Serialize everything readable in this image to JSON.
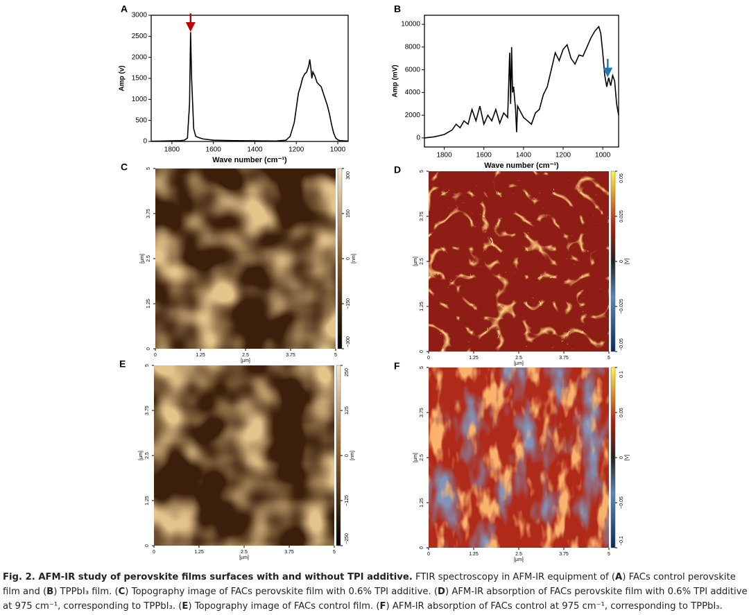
{
  "chart_data": [
    {
      "type": "line",
      "label": "A",
      "xlabel": "Wave number (cm⁻¹)",
      "ylabel": "Amp (v)",
      "x": [
        1900,
        1850,
        1800,
        1760,
        1740,
        1725,
        1715,
        1710,
        1705,
        1695,
        1685,
        1670,
        1650,
        1600,
        1500,
        1400,
        1300,
        1250,
        1230,
        1210,
        1200,
        1190,
        1180,
        1170,
        1160,
        1150,
        1140,
        1135,
        1130,
        1125,
        1120,
        1110,
        1100,
        1090,
        1080,
        1070,
        1060,
        1050,
        1040,
        1030,
        1020,
        1010,
        1000,
        990,
        950
      ],
      "series": [
        {
          "color": "#000000",
          "values": [
            5,
            10,
            15,
            20,
            30,
            80,
            900,
            2600,
            1500,
            300,
            120,
            90,
            60,
            30,
            20,
            15,
            10,
            30,
            120,
            450,
            800,
            1150,
            1300,
            1500,
            1600,
            1650,
            1800,
            1950,
            1750,
            1500,
            1650,
            1550,
            1400,
            1350,
            1300,
            1150,
            1000,
            850,
            650,
            400,
            200,
            80,
            40,
            20,
            10
          ]
        }
      ],
      "xlim": [
        1900,
        950
      ],
      "ylim": [
        0,
        3000
      ],
      "xticks": [
        1800,
        1600,
        1400,
        1200,
        1000
      ],
      "yticks": [
        0,
        500,
        1000,
        1500,
        2000,
        2500,
        3000
      ],
      "arrows": [
        {
          "x": 1710,
          "y": 2650,
          "color": "#c00000"
        }
      ]
    },
    {
      "type": "line",
      "label": "B",
      "xlabel": "Wave number (cm⁻¹)",
      "ylabel": "Amp (mV)",
      "x": [
        1900,
        1850,
        1800,
        1760,
        1740,
        1720,
        1700,
        1680,
        1660,
        1640,
        1620,
        1600,
        1580,
        1560,
        1540,
        1520,
        1500,
        1480,
        1470,
        1465,
        1460,
        1455,
        1450,
        1440,
        1435,
        1430,
        1400,
        1380,
        1360,
        1340,
        1320,
        1300,
        1280,
        1260,
        1240,
        1220,
        1200,
        1180,
        1160,
        1140,
        1120,
        1100,
        1080,
        1060,
        1040,
        1020,
        1010,
        1000,
        990,
        980,
        970,
        960,
        950,
        940,
        930,
        920
      ],
      "series": [
        {
          "color": "#000000",
          "values": [
            0,
            100,
            300,
            700,
            1200,
            900,
            1500,
            1200,
            2500,
            1500,
            2800,
            1200,
            2000,
            1500,
            2500,
            1300,
            2200,
            1800,
            7500,
            3000,
            8000,
            4000,
            4500,
            2500,
            500,
            2800,
            1800,
            1500,
            1200,
            2200,
            2500,
            3800,
            4500,
            6000,
            7500,
            6800,
            7800,
            8200,
            7000,
            6500,
            7300,
            7200,
            8000,
            8800,
            9400,
            9800,
            9200,
            7500,
            5500,
            4500,
            5300,
            4600,
            5500,
            5000,
            3000,
            2000
          ]
        }
      ],
      "xlim": [
        1900,
        920
      ],
      "ylim": [
        -800,
        10800
      ],
      "xticks": [
        1800,
        1600,
        1400,
        1200,
        1000
      ],
      "yticks": [
        0,
        2000,
        4000,
        6000,
        8000,
        10000
      ],
      "arrows": [
        {
          "x": 975,
          "y": 5500,
          "color": "#1f77b4"
        }
      ]
    }
  ],
  "images": [
    {
      "label": "C",
      "colormap": "copper",
      "xticks": [
        0,
        1.25,
        2.5,
        3.75,
        5
      ],
      "yticks": [
        0,
        1.25,
        2.5,
        3.75,
        5
      ],
      "xlim": [
        0,
        5
      ],
      "ylim": [
        0,
        5
      ],
      "axis_unit": "[µm]",
      "colorbar_unit": "[nm]",
      "clim": [
        -300,
        300
      ],
      "cticks": [
        300,
        150,
        0,
        {
          "value": -150,
          "label": "−150"
        },
        {
          "value": -300,
          "label": "−300"
        }
      ]
    },
    {
      "label": "D",
      "colormap": "hot",
      "xticks": [
        0,
        1.25,
        2.5,
        3.75,
        5
      ],
      "yticks": [
        0,
        1.25,
        2.5,
        3.75,
        5
      ],
      "xlim": [
        0,
        5
      ],
      "ylim": [
        0,
        5
      ],
      "axis_unit": "[µm]",
      "colorbar_unit": "[V]",
      "clim": [
        -0.05,
        0.05
      ],
      "cticks": [
        0.05,
        0.025,
        0,
        {
          "value": -0.025,
          "label": "−0.025"
        },
        {
          "value": -0.05,
          "label": "−0.05"
        }
      ]
    },
    {
      "label": "E",
      "colormap": "copper",
      "xticks": [
        0,
        1.25,
        2.5,
        3.75,
        5
      ],
      "yticks": [
        0,
        1.25,
        2.5,
        3.75,
        5
      ],
      "xlim": [
        0,
        5
      ],
      "ylim": [
        0,
        5
      ],
      "axis_unit": "[µm]",
      "colorbar_unit": "[nm]",
      "clim": [
        -250,
        250
      ],
      "cticks": [
        250,
        125,
        0,
        {
          "value": -125,
          "label": "−125"
        },
        {
          "value": -250,
          "label": "−250"
        }
      ]
    },
    {
      "label": "F",
      "colormap": "hotblue",
      "xticks": [
        0,
        1.25,
        2.5,
        3.75,
        5
      ],
      "yticks": [
        0,
        1.25,
        2.5,
        3.75,
        5
      ],
      "xlim": [
        0,
        5
      ],
      "ylim": [
        0,
        5
      ],
      "axis_unit": "[µm]",
      "colorbar_unit": "[V]",
      "clim": [
        -0.1,
        0.1
      ],
      "cticks": [
        0.1,
        0.05,
        0,
        {
          "value": -0.05,
          "label": "−0.05"
        },
        {
          "value": -0.1,
          "label": "−0.1"
        }
      ]
    }
  ],
  "caption": {
    "runs": [
      {
        "text": "Fig. 2. AFM-IR study of perovskite films surfaces with and without TPI additive.",
        "bold": true
      },
      {
        "text": " FTIR spectroscopy in AFM-IR equipment of (",
        "bold": false
      },
      {
        "text": "A",
        "bold": true
      },
      {
        "text": ") FACs control perovskite film and (",
        "bold": false
      },
      {
        "text": "B",
        "bold": true
      },
      {
        "text": ") TPPbI₃ film. (",
        "bold": false
      },
      {
        "text": "C",
        "bold": true
      },
      {
        "text": ") Topography image of FACs perovskite film with 0.6% TPI additive. (",
        "bold": false
      },
      {
        "text": "D",
        "bold": true
      },
      {
        "text": ") AFM-IR absorption of FACs perovskite film with 0.6% TPI additive at 975 cm⁻¹, corresponding to TPPbI₃. (",
        "bold": false
      },
      {
        "text": "E",
        "bold": true
      },
      {
        "text": ") Topography image of FACs control film. (",
        "bold": false
      },
      {
        "text": "F",
        "bold": true
      },
      {
        "text": ") AFM-IR absorption of FACs control at 975 cm⁻¹, corresponding to TPPbI₃.",
        "bold": false
      }
    ]
  }
}
